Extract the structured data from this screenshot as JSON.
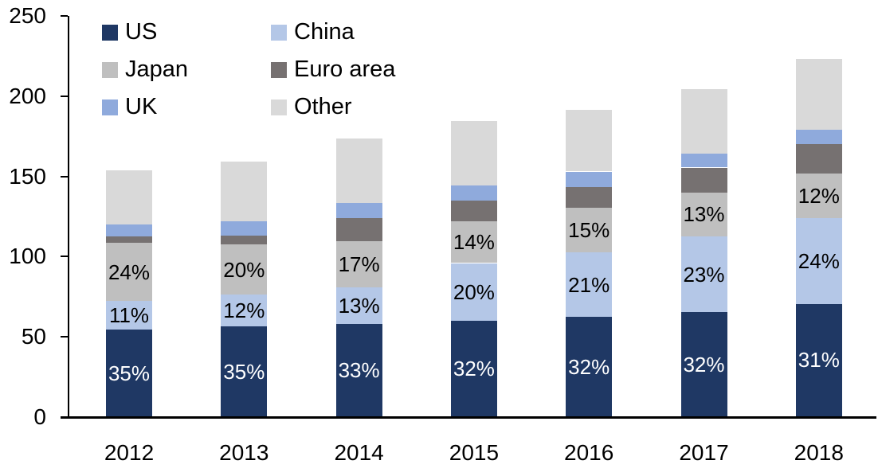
{
  "chart_data": {
    "type": "bar",
    "stacked": true,
    "title": "",
    "categories": [
      "2012",
      "2013",
      "2014",
      "2015",
      "2016",
      "2017",
      "2018"
    ],
    "series": [
      {
        "name": "US",
        "color": "#1F3864",
        "values": [
          54,
          56,
          57.5,
          59.5,
          62,
          65,
          70
        ],
        "segment_labels": [
          "35%",
          "35%",
          "33%",
          "32%",
          "32%",
          "32%",
          "31%"
        ],
        "label_color": "#FFFFFF"
      },
      {
        "name": "China",
        "color": "#B4C7E7",
        "values": [
          18,
          20,
          23,
          36,
          40,
          47,
          53.5
        ],
        "segment_labels": [
          "11%",
          "12%",
          "13%",
          "20%",
          "21%",
          "23%",
          "24%"
        ],
        "label_color": "#000000"
      },
      {
        "name": "Japan",
        "color": "#BFBFBF",
        "values": [
          36,
          31,
          28.5,
          26,
          28,
          27.5,
          28
        ],
        "segment_labels": [
          "24%",
          "20%",
          "17%",
          "14%",
          "15%",
          "13%",
          "12%"
        ],
        "label_color": "#000000"
      },
      {
        "name": "Euro area",
        "color": "#767171",
        "values": [
          4,
          5.5,
          14.5,
          13,
          13,
          15.5,
          18
        ],
        "segment_labels": null,
        "label_color": null
      },
      {
        "name": "UK",
        "color": "#8FAADC",
        "values": [
          7.5,
          9,
          9.5,
          9.5,
          9.5,
          8.5,
          9
        ],
        "segment_labels": null,
        "label_color": null
      },
      {
        "name": "Other",
        "color": "#D9D9D9",
        "values": [
          34,
          37.5,
          40,
          40,
          38.5,
          40.5,
          44
        ],
        "segment_labels": null,
        "label_color": null
      }
    ],
    "totals": [
      153.5,
      159,
      173,
      184,
      191,
      204,
      222.5
    ],
    "xlabel": "",
    "ylabel": "",
    "ylim": [
      0,
      250
    ],
    "yticks": [
      0,
      50,
      100,
      150,
      200,
      250
    ],
    "grid": false,
    "legend_position": "top-left",
    "legend_order_note": "two columns, row-major: US/China, Japan/Euro area, UK/Other",
    "axis_color": "#000000",
    "background": "#FFFFFF"
  }
}
